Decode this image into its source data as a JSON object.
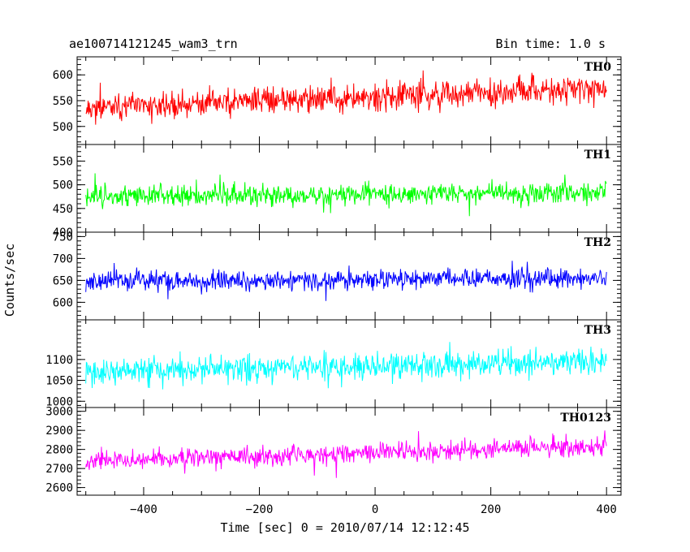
{
  "header": {
    "title": "ae100714121245_wam3_trn",
    "bin_time": "Bin time: 1.0 s"
  },
  "axes": {
    "ylabel": "Counts/sec",
    "xlabel": "Time [sec] 0 = 2010/07/14 12:12:45"
  },
  "chart_data": {
    "type": "line",
    "x_range": [
      -500,
      400
    ],
    "x_step": 1,
    "xlim": [
      -515,
      425
    ],
    "x_ticks": [
      -400,
      -200,
      0,
      200,
      400
    ],
    "grid": false,
    "panels": [
      {
        "name": "TH0",
        "color": "#ff0000",
        "ylim": [
          465,
          635
        ],
        "y_ticks": [
          500,
          550,
          600
        ],
        "mean_start": 535,
        "mean_end": 575,
        "amplitude": 32,
        "seed": 11
      },
      {
        "name": "TH1",
        "color": "#00ff00",
        "ylim": [
          400,
          585
        ],
        "y_ticks": [
          400,
          450,
          500,
          550
        ],
        "mean_start": 475,
        "mean_end": 485,
        "amplitude": 28,
        "seed": 23
      },
      {
        "name": "TH2",
        "color": "#0000ff",
        "ylim": [
          560,
          760
        ],
        "y_ticks": [
          600,
          650,
          700,
          750
        ],
        "mean_start": 648,
        "mean_end": 655,
        "amplitude": 28,
        "seed": 37
      },
      {
        "name": "TH3",
        "color": "#00ffff",
        "ylim": [
          985,
          1195
        ],
        "y_ticks": [
          1000,
          1050,
          1100
        ],
        "mean_start": 1070,
        "mean_end": 1095,
        "amplitude": 38,
        "seed": 41
      },
      {
        "name": "TH0123",
        "color": "#ff00ff",
        "ylim": [
          2560,
          3020
        ],
        "y_ticks": [
          2600,
          2700,
          2800,
          2900,
          3000
        ],
        "mean_start": 2740,
        "mean_end": 2820,
        "amplitude": 65,
        "seed": 53
      }
    ]
  }
}
